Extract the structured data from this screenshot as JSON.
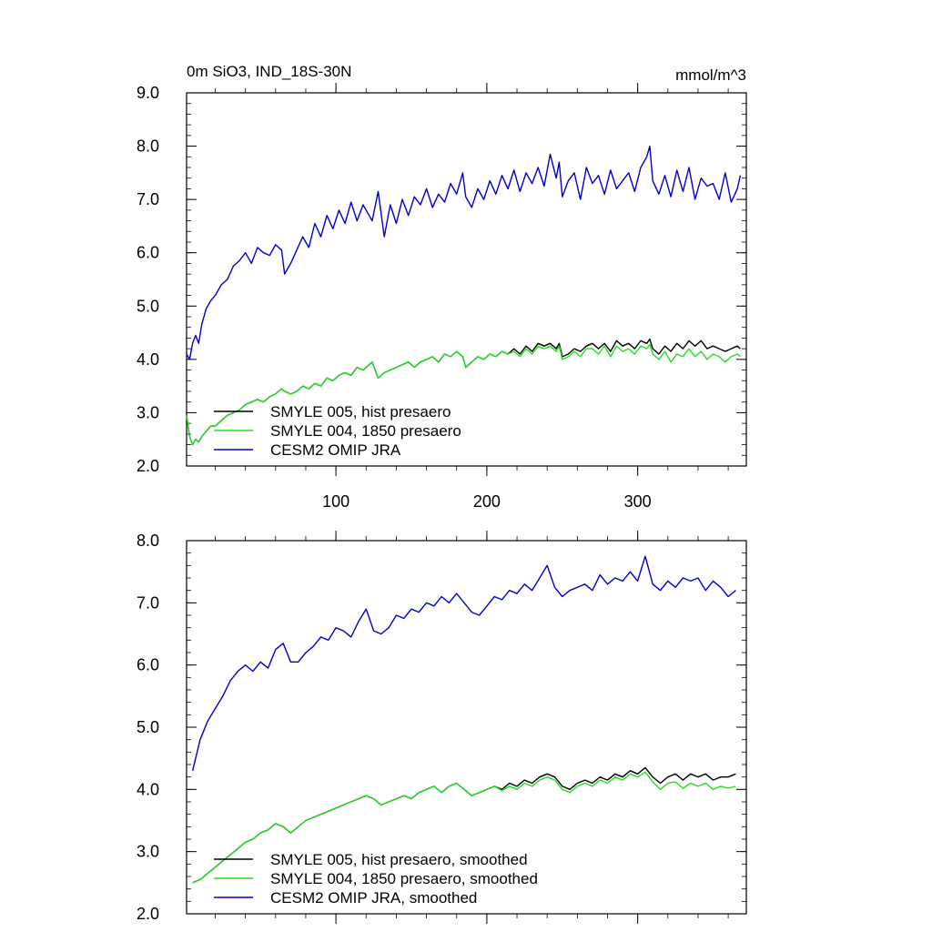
{
  "chart_data": [
    {
      "type": "line",
      "title_left": "0m SiO3, IND_18S-30N",
      "title_right": "mmol/m^3",
      "xlim": [
        1,
        372
      ],
      "ylim": [
        2.0,
        9.0
      ],
      "xticks": [
        100,
        200,
        300
      ],
      "xticklabels": [
        "100",
        "200",
        "300"
      ],
      "yticks": [
        2.0,
        3.0,
        4.0,
        5.0,
        6.0,
        7.0,
        8.0,
        9.0
      ],
      "yticklabels": [
        "2.0",
        "3.0",
        "4.0",
        "5.0",
        "6.0",
        "7.0",
        "8.0",
        "9.0"
      ],
      "legend_position": "bottom-left",
      "series": [
        {
          "name": "SMYLE 005, hist presaero",
          "color": "#000000",
          "x": [
            1,
            3,
            5,
            7,
            9,
            11,
            14,
            17,
            20,
            24,
            28,
            32,
            36,
            40,
            44,
            48,
            52,
            56,
            60,
            64,
            66,
            70,
            74,
            78,
            82,
            86,
            90,
            94,
            98,
            102,
            106,
            110,
            114,
            118,
            122,
            124,
            128,
            132,
            136,
            140,
            144,
            148,
            152,
            156,
            160,
            164,
            168,
            172,
            176,
            180,
            184,
            186,
            190,
            194,
            198,
            202,
            206,
            210,
            214,
            218,
            222,
            226,
            230,
            234,
            238,
            242,
            246,
            248,
            250,
            254,
            258,
            262,
            266,
            270,
            274,
            278,
            282,
            286,
            290,
            294,
            298,
            302,
            306,
            308,
            310,
            314,
            318,
            322,
            326,
            330,
            334,
            338,
            342,
            346,
            350,
            354,
            358,
            362,
            366,
            368
          ],
          "y": [
            2.95,
            2.55,
            2.4,
            2.5,
            2.45,
            2.55,
            2.65,
            2.75,
            2.75,
            2.85,
            2.95,
            3.0,
            3.05,
            3.15,
            3.2,
            3.25,
            3.2,
            3.3,
            3.35,
            3.45,
            3.4,
            3.35,
            3.4,
            3.5,
            3.45,
            3.55,
            3.5,
            3.65,
            3.6,
            3.7,
            3.75,
            3.7,
            3.85,
            3.8,
            3.9,
            3.95,
            3.65,
            3.75,
            3.8,
            3.85,
            3.9,
            3.95,
            3.85,
            3.95,
            4.0,
            4.05,
            3.95,
            4.1,
            4.05,
            4.15,
            4.05,
            3.85,
            3.95,
            4.05,
            4.0,
            4.1,
            4.05,
            4.15,
            4.1,
            4.2,
            4.1,
            4.25,
            4.15,
            4.3,
            4.25,
            4.3,
            4.2,
            4.3,
            4.05,
            4.1,
            4.2,
            4.15,
            4.25,
            4.3,
            4.2,
            4.3,
            4.15,
            4.35,
            4.25,
            4.3,
            4.2,
            4.35,
            4.3,
            4.38,
            4.2,
            4.1,
            4.25,
            4.15,
            4.3,
            4.2,
            4.35,
            4.25,
            4.35,
            4.2,
            4.25,
            4.2,
            4.15,
            4.2,
            4.25,
            4.2
          ]
        },
        {
          "name": "SMYLE 004, 1850 presaero",
          "color": "#22dd22",
          "x": [
            1,
            3,
            5,
            7,
            9,
            11,
            14,
            17,
            20,
            24,
            28,
            32,
            36,
            40,
            44,
            48,
            52,
            56,
            60,
            64,
            66,
            70,
            74,
            78,
            82,
            86,
            90,
            94,
            98,
            102,
            106,
            110,
            114,
            118,
            122,
            124,
            128,
            132,
            136,
            140,
            144,
            148,
            152,
            156,
            160,
            164,
            168,
            172,
            176,
            180,
            184,
            186,
            190,
            194,
            198,
            202,
            206,
            210,
            214,
            218,
            222,
            226,
            230,
            234,
            238,
            242,
            246,
            248,
            250,
            254,
            258,
            262,
            266,
            270,
            274,
            278,
            282,
            286,
            290,
            294,
            298,
            302,
            306,
            308,
            310,
            314,
            318,
            322,
            326,
            330,
            334,
            338,
            342,
            346,
            350,
            354,
            358,
            362,
            366,
            368
          ],
          "y": [
            2.95,
            2.55,
            2.4,
            2.5,
            2.45,
            2.55,
            2.65,
            2.75,
            2.75,
            2.85,
            2.95,
            3.0,
            3.05,
            3.15,
            3.2,
            3.25,
            3.2,
            3.3,
            3.35,
            3.45,
            3.4,
            3.35,
            3.4,
            3.5,
            3.45,
            3.55,
            3.5,
            3.65,
            3.6,
            3.7,
            3.75,
            3.7,
            3.85,
            3.8,
            3.9,
            3.95,
            3.65,
            3.75,
            3.8,
            3.85,
            3.9,
            3.95,
            3.85,
            3.95,
            4.0,
            4.05,
            3.95,
            4.1,
            4.05,
            4.15,
            4.05,
            3.85,
            3.95,
            4.05,
            4.0,
            4.1,
            4.05,
            4.15,
            4.1,
            4.15,
            4.05,
            4.2,
            4.1,
            4.25,
            4.2,
            4.25,
            4.15,
            4.25,
            4.0,
            4.05,
            4.15,
            4.05,
            4.2,
            4.2,
            4.1,
            4.25,
            4.05,
            4.25,
            4.15,
            4.2,
            4.1,
            4.25,
            4.2,
            4.28,
            4.1,
            4.0,
            4.15,
            3.95,
            4.1,
            4.05,
            4.2,
            4.05,
            4.15,
            4.0,
            4.1,
            4.05,
            3.95,
            4.05,
            4.1,
            4.05
          ]
        },
        {
          "name": "CESM2 OMIP JRA",
          "color": "#0000cc",
          "x": [
            1,
            3,
            5,
            7,
            9,
            11,
            14,
            17,
            20,
            24,
            28,
            32,
            36,
            40,
            44,
            48,
            52,
            56,
            60,
            64,
            66,
            70,
            74,
            78,
            82,
            86,
            90,
            94,
            98,
            102,
            106,
            110,
            114,
            118,
            122,
            124,
            128,
            132,
            136,
            140,
            144,
            148,
            152,
            156,
            160,
            164,
            168,
            172,
            176,
            180,
            184,
            186,
            190,
            194,
            198,
            202,
            206,
            210,
            214,
            218,
            222,
            226,
            230,
            234,
            238,
            242,
            246,
            248,
            250,
            254,
            258,
            262,
            266,
            270,
            274,
            278,
            282,
            286,
            290,
            294,
            298,
            302,
            306,
            308,
            310,
            314,
            318,
            322,
            326,
            330,
            334,
            338,
            342,
            346,
            350,
            354,
            358,
            362,
            366,
            368
          ],
          "y": [
            4.1,
            4.0,
            4.3,
            4.45,
            4.3,
            4.65,
            4.95,
            5.1,
            5.2,
            5.4,
            5.5,
            5.75,
            5.85,
            6.0,
            5.8,
            6.1,
            6.0,
            5.95,
            6.15,
            6.05,
            5.6,
            5.8,
            6.05,
            6.3,
            6.1,
            6.55,
            6.3,
            6.7,
            6.45,
            6.8,
            6.55,
            6.95,
            6.6,
            6.9,
            6.7,
            6.6,
            7.15,
            6.3,
            6.9,
            6.55,
            7.0,
            6.7,
            7.05,
            6.9,
            7.2,
            6.85,
            7.1,
            6.95,
            7.3,
            7.1,
            7.5,
            7.05,
            6.85,
            7.2,
            7.0,
            7.35,
            7.1,
            7.45,
            7.2,
            7.55,
            7.15,
            7.5,
            7.3,
            7.6,
            7.25,
            7.85,
            7.4,
            7.7,
            7.05,
            7.35,
            7.5,
            7.0,
            7.6,
            7.3,
            7.45,
            7.1,
            7.55,
            7.2,
            7.35,
            7.5,
            7.15,
            7.6,
            7.8,
            8.0,
            7.35,
            7.1,
            7.45,
            7.05,
            7.55,
            7.15,
            7.6,
            7.0,
            7.4,
            7.25,
            7.3,
            7.0,
            7.5,
            6.95,
            7.2,
            7.45
          ]
        }
      ]
    },
    {
      "type": "line",
      "xlim": [
        1,
        372
      ],
      "ylim": [
        2.0,
        8.0
      ],
      "xticks": [
        100,
        200,
        300
      ],
      "yticks": [
        2.0,
        3.0,
        4.0,
        5.0,
        6.0,
        7.0,
        8.0
      ],
      "yticklabels": [
        "2.0",
        "3.0",
        "4.0",
        "5.0",
        "6.0",
        "7.0",
        "8.0"
      ],
      "legend_position": "bottom-left",
      "series": [
        {
          "name": "SMYLE 005, hist presaero, smoothed",
          "color": "#000000",
          "x": [
            5,
            10,
            15,
            20,
            25,
            30,
            35,
            40,
            45,
            50,
            55,
            60,
            65,
            70,
            75,
            80,
            85,
            90,
            95,
            100,
            105,
            110,
            115,
            120,
            125,
            130,
            135,
            140,
            145,
            150,
            155,
            160,
            165,
            170,
            175,
            180,
            185,
            190,
            195,
            200,
            205,
            210,
            215,
            220,
            225,
            230,
            235,
            240,
            245,
            250,
            255,
            260,
            265,
            270,
            275,
            280,
            285,
            290,
            295,
            300,
            305,
            310,
            315,
            320,
            325,
            330,
            335,
            340,
            345,
            350,
            355,
            360,
            365
          ],
          "y": [
            2.5,
            2.55,
            2.65,
            2.75,
            2.85,
            2.95,
            3.05,
            3.15,
            3.2,
            3.3,
            3.35,
            3.45,
            3.4,
            3.3,
            3.4,
            3.5,
            3.55,
            3.6,
            3.65,
            3.7,
            3.75,
            3.8,
            3.85,
            3.9,
            3.85,
            3.75,
            3.8,
            3.85,
            3.9,
            3.85,
            3.95,
            4.0,
            4.05,
            3.95,
            4.05,
            4.1,
            4.0,
            3.9,
            3.95,
            4.0,
            4.05,
            4.0,
            4.1,
            4.05,
            4.15,
            4.1,
            4.2,
            4.25,
            4.2,
            4.05,
            4.0,
            4.1,
            4.15,
            4.1,
            4.2,
            4.15,
            4.25,
            4.2,
            4.3,
            4.25,
            4.35,
            4.2,
            4.1,
            4.2,
            4.25,
            4.15,
            4.25,
            4.2,
            4.25,
            4.15,
            4.2,
            4.2,
            4.25
          ]
        },
        {
          "name": "SMYLE 004, 1850 presaero, smoothed",
          "color": "#22dd22",
          "x": [
            5,
            10,
            15,
            20,
            25,
            30,
            35,
            40,
            45,
            50,
            55,
            60,
            65,
            70,
            75,
            80,
            85,
            90,
            95,
            100,
            105,
            110,
            115,
            120,
            125,
            130,
            135,
            140,
            145,
            150,
            155,
            160,
            165,
            170,
            175,
            180,
            185,
            190,
            195,
            200,
            205,
            210,
            215,
            220,
            225,
            230,
            235,
            240,
            245,
            250,
            255,
            260,
            265,
            270,
            275,
            280,
            285,
            290,
            295,
            300,
            305,
            310,
            315,
            320,
            325,
            330,
            335,
            340,
            345,
            350,
            355,
            360,
            365
          ],
          "y": [
            2.5,
            2.55,
            2.65,
            2.75,
            2.85,
            2.95,
            3.05,
            3.15,
            3.2,
            3.3,
            3.35,
            3.45,
            3.4,
            3.3,
            3.4,
            3.5,
            3.55,
            3.6,
            3.65,
            3.7,
            3.75,
            3.8,
            3.85,
            3.9,
            3.85,
            3.75,
            3.8,
            3.85,
            3.9,
            3.85,
            3.95,
            4.0,
            4.05,
            3.95,
            4.05,
            4.1,
            4.0,
            3.9,
            3.95,
            4.0,
            4.05,
            3.98,
            4.05,
            4.0,
            4.1,
            4.05,
            4.15,
            4.2,
            4.15,
            4.0,
            3.95,
            4.05,
            4.1,
            4.05,
            4.15,
            4.1,
            4.2,
            4.15,
            4.25,
            4.2,
            4.28,
            4.12,
            4.0,
            4.1,
            4.12,
            4.02,
            4.1,
            4.05,
            4.1,
            4.0,
            4.05,
            4.02,
            4.05
          ]
        },
        {
          "name": "CESM2 OMIP JRA, smoothed",
          "color": "#0000cc",
          "x": [
            5,
            10,
            15,
            20,
            25,
            30,
            35,
            40,
            45,
            50,
            55,
            60,
            65,
            70,
            75,
            80,
            85,
            90,
            95,
            100,
            105,
            110,
            115,
            120,
            125,
            130,
            135,
            140,
            145,
            150,
            155,
            160,
            165,
            170,
            175,
            180,
            185,
            190,
            195,
            200,
            205,
            210,
            215,
            220,
            225,
            230,
            235,
            240,
            245,
            250,
            255,
            260,
            265,
            270,
            275,
            280,
            285,
            290,
            295,
            300,
            305,
            310,
            315,
            320,
            325,
            330,
            335,
            340,
            345,
            350,
            355,
            360,
            365
          ],
          "y": [
            4.3,
            4.8,
            5.1,
            5.3,
            5.5,
            5.75,
            5.9,
            6.0,
            5.9,
            6.05,
            5.95,
            6.25,
            6.35,
            6.05,
            6.05,
            6.2,
            6.3,
            6.45,
            6.4,
            6.6,
            6.55,
            6.45,
            6.7,
            6.9,
            6.55,
            6.5,
            6.6,
            6.8,
            6.75,
            6.9,
            6.85,
            7.0,
            6.95,
            7.1,
            7.0,
            7.15,
            7.0,
            6.85,
            6.8,
            6.95,
            7.1,
            7.05,
            7.2,
            7.15,
            7.3,
            7.2,
            7.4,
            7.6,
            7.25,
            7.1,
            7.2,
            7.25,
            7.3,
            7.2,
            7.45,
            7.3,
            7.4,
            7.35,
            7.5,
            7.35,
            7.75,
            7.3,
            7.2,
            7.35,
            7.25,
            7.4,
            7.35,
            7.4,
            7.2,
            7.35,
            7.25,
            7.1,
            7.2
          ]
        }
      ]
    }
  ]
}
